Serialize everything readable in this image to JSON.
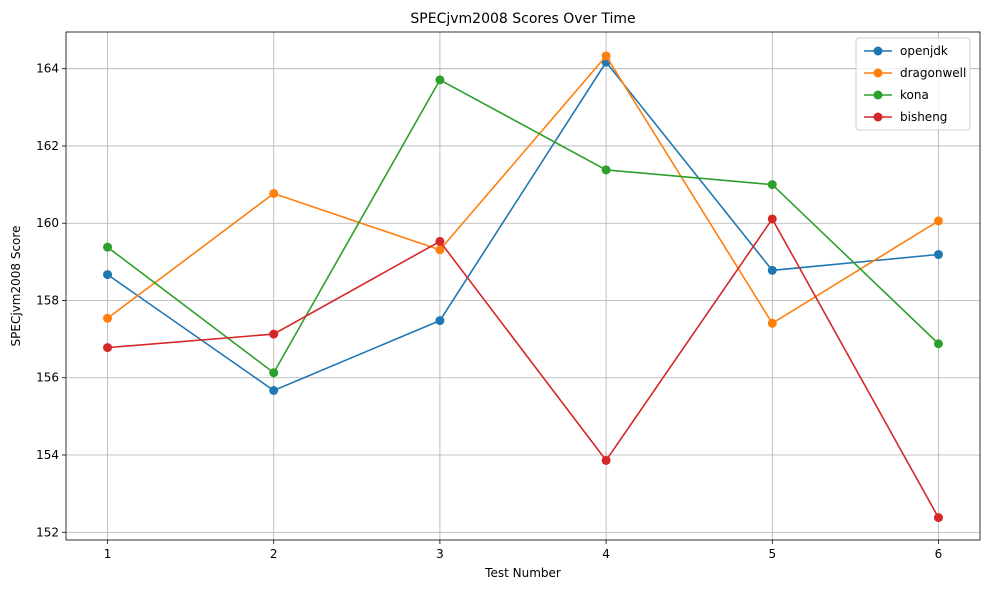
{
  "chart_data": {
    "type": "line",
    "title": "SPECjvm2008 Scores Over Time",
    "xlabel": "Test Number",
    "ylabel": "SPECjvm2008 Score",
    "x": [
      1,
      2,
      3,
      4,
      5,
      6
    ],
    "xlim": [
      0.75,
      6.25
    ],
    "ylim": [
      151.8,
      164.95
    ],
    "xticks": [
      1,
      2,
      3,
      4,
      5,
      6
    ],
    "yticks": [
      152,
      154,
      156,
      158,
      160,
      162,
      164
    ],
    "grid": true,
    "legend_position": "top-right",
    "series": [
      {
        "name": "openjdk",
        "color": "#1f77b4",
        "values": [
          158.67,
          155.67,
          157.48,
          164.17,
          158.78,
          159.19
        ]
      },
      {
        "name": "dragonwell",
        "color": "#ff7f0e",
        "values": [
          157.54,
          160.77,
          159.31,
          164.33,
          157.41,
          160.06
        ]
      },
      {
        "name": "kona",
        "color": "#2ca02c",
        "values": [
          159.38,
          156.13,
          163.71,
          161.38,
          161.0,
          156.88
        ]
      },
      {
        "name": "bisheng",
        "color": "#d62728",
        "values": [
          156.78,
          157.13,
          159.53,
          153.86,
          160.11,
          152.38
        ]
      }
    ]
  }
}
